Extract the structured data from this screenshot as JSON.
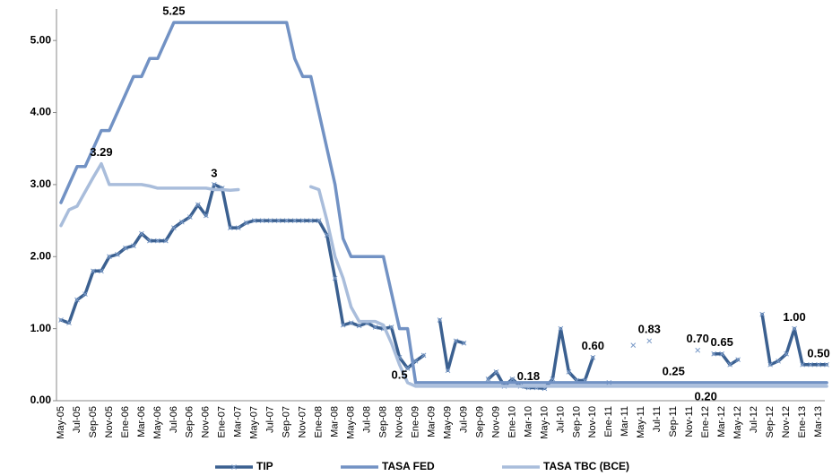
{
  "chart_data": {
    "type": "line",
    "categories": [
      "May-05",
      null,
      "Jul-05",
      null,
      "Sep-05",
      null,
      "Nov-05",
      null,
      "Ene-06",
      null,
      "Mar-06",
      null,
      "May-06",
      null,
      "Jul-06",
      null,
      "Sep-06",
      null,
      "Nov-06",
      null,
      "Ene-07",
      null,
      "Mar-07",
      null,
      "May-07",
      null,
      "Jul-07",
      null,
      "Sep-07",
      null,
      "Nov-07",
      null,
      "Ene-08",
      null,
      "Mar-08",
      null,
      "May-08",
      null,
      "Jul-08",
      null,
      "Sep-08",
      null,
      "Nov-08",
      null,
      "Ene-09",
      null,
      "Mar-09",
      null,
      "May-09",
      null,
      "Jul-09",
      null,
      "Sep-09",
      null,
      "Nov-09",
      null,
      "Ene-10",
      null,
      "Mar-10",
      null,
      "May-10",
      null,
      "Jul-10",
      null,
      "Sep-10",
      null,
      "Nov-10",
      null,
      "Ene-11",
      null,
      "Mar-11",
      null,
      "May-11",
      null,
      "Jul-11",
      null,
      "Sep-11",
      null,
      "Nov-11",
      null,
      "Ene-12",
      null,
      "Mar-12",
      null,
      "May-12",
      null,
      "Jul-12",
      null,
      "Sep-12",
      null,
      "Nov-12",
      null,
      "Ene-13",
      null,
      "Mar-13",
      null
    ],
    "series": [
      {
        "name": "TIP",
        "color": "#3b6090",
        "marker": true,
        "values": [
          1.12,
          1.08,
          1.4,
          1.48,
          1.8,
          1.8,
          2.0,
          2.03,
          2.12,
          2.15,
          2.32,
          2.22,
          2.22,
          2.22,
          2.4,
          2.48,
          2.55,
          2.72,
          2.57,
          3.0,
          2.95,
          2.4,
          2.4,
          2.47,
          2.5,
          2.5,
          2.5,
          2.5,
          2.5,
          2.5,
          2.5,
          2.5,
          2.5,
          2.3,
          1.7,
          1.05,
          1.08,
          1.04,
          1.08,
          1.02,
          1.0,
          1.02,
          0.6,
          0.45,
          0.55,
          0.63,
          null,
          1.12,
          0.42,
          0.83,
          0.8,
          null,
          null,
          0.3,
          0.4,
          0.2,
          0.3,
          0.2,
          0.18,
          0.18,
          0.17,
          0.3,
          1.0,
          0.4,
          0.28,
          0.28,
          0.6,
          null,
          0.25,
          null,
          null,
          0.77,
          null,
          0.83,
          null,
          null,
          null,
          null,
          null,
          0.7,
          null,
          0.65,
          0.65,
          0.5,
          0.57,
          null,
          null,
          1.2,
          0.5,
          0.55,
          0.65,
          1.0,
          0.5,
          0.5,
          0.5,
          0.5
        ],
        "value_labels": [
          null,
          null,
          null,
          null,
          null,
          null,
          null,
          null,
          null,
          null,
          null,
          null,
          null,
          null,
          null,
          null,
          null,
          null,
          null,
          "3",
          null,
          null,
          null,
          null,
          null,
          null,
          null,
          null,
          null,
          null,
          null,
          null,
          null,
          null,
          null,
          null,
          null,
          null,
          null,
          null,
          null,
          null,
          null,
          null,
          null,
          null,
          null,
          null,
          null,
          null,
          null,
          null,
          null,
          null,
          null,
          null,
          null,
          null,
          "0.18",
          null,
          null,
          null,
          null,
          null,
          null,
          null,
          "0.60",
          null,
          null,
          null,
          null,
          null,
          null,
          "0.83",
          null,
          null,
          null,
          null,
          null,
          "0.70",
          null,
          null,
          "0.65",
          null,
          null,
          null,
          null,
          null,
          null,
          null,
          null,
          "1.00",
          null,
          null,
          "0.50",
          null
        ]
      },
      {
        "name": "TASA FED",
        "color": "#7292c4",
        "marker": false,
        "values": [
          2.75,
          3.0,
          3.25,
          3.25,
          3.5,
          3.75,
          3.75,
          4.0,
          4.25,
          4.5,
          4.5,
          4.75,
          4.75,
          5.0,
          5.25,
          5.25,
          5.25,
          5.25,
          5.25,
          5.25,
          5.25,
          5.25,
          5.25,
          5.25,
          5.25,
          5.25,
          5.25,
          5.25,
          5.25,
          4.75,
          4.5,
          4.5,
          4.0,
          3.5,
          3.0,
          2.25,
          2.0,
          2.0,
          2.0,
          2.0,
          2.0,
          1.5,
          1.0,
          1.0,
          0.25,
          0.25,
          0.25,
          0.25,
          0.25,
          0.25,
          0.25,
          0.25,
          0.25,
          0.25,
          0.25,
          0.25,
          0.25,
          0.25,
          0.25,
          0.25,
          0.25,
          0.25,
          0.25,
          0.25,
          0.25,
          0.25,
          0.25,
          0.25,
          0.25,
          0.25,
          0.25,
          0.25,
          0.25,
          0.25,
          0.25,
          0.25,
          0.25,
          0.25,
          0.25,
          0.25,
          0.25,
          0.25,
          0.25,
          0.25,
          0.25,
          0.25,
          0.25,
          0.25,
          0.25,
          0.25,
          0.25,
          0.25,
          0.25,
          0.25,
          0.25,
          0.25
        ],
        "value_labels": [
          null,
          null,
          null,
          null,
          null,
          null,
          null,
          null,
          null,
          null,
          null,
          null,
          null,
          null,
          "5.25",
          null,
          null,
          null,
          null,
          null,
          null,
          null,
          null,
          null,
          null,
          null,
          null,
          null,
          null,
          null,
          null,
          null,
          null,
          null,
          null,
          null,
          null,
          null,
          null,
          null,
          null,
          null,
          null,
          null,
          null,
          null,
          null,
          null,
          null,
          null,
          null,
          null,
          null,
          null,
          null,
          null,
          null,
          null,
          null,
          null,
          null,
          null,
          null,
          null,
          null,
          null,
          null,
          null,
          null,
          null,
          null,
          null,
          null,
          null,
          null,
          null,
          "0.25",
          null,
          null,
          null,
          null,
          null,
          null,
          null,
          null,
          null,
          null,
          null,
          null,
          null,
          null,
          null,
          null,
          null,
          null,
          null
        ]
      },
      {
        "name": "TASA TBC (BCE)",
        "color": "#a9bddb",
        "marker": false,
        "values": [
          2.43,
          2.65,
          2.7,
          2.9,
          3.1,
          3.29,
          3.0,
          3.0,
          3.0,
          3.0,
          3.0,
          2.98,
          2.95,
          2.95,
          2.95,
          2.95,
          2.95,
          2.95,
          2.95,
          2.93,
          2.93,
          2.92,
          2.93,
          null,
          null,
          null,
          null,
          null,
          null,
          null,
          null,
          2.97,
          2.93,
          2.5,
          2.0,
          1.7,
          1.3,
          1.1,
          1.1,
          1.1,
          1.05,
          0.8,
          0.5,
          0.25,
          0.2,
          0.2,
          0.2,
          0.2,
          0.2,
          0.2,
          0.2,
          0.2,
          0.2,
          0.2,
          0.2,
          0.2,
          0.2,
          0.2,
          0.2,
          0.2,
          0.2,
          0.2,
          0.2,
          0.2,
          0.2,
          0.2,
          0.2,
          0.2,
          0.2,
          0.2,
          0.2,
          0.2,
          0.2,
          0.2,
          0.2,
          0.2,
          0.2,
          0.2,
          0.2,
          0.2,
          0.2,
          0.2,
          0.2,
          0.2,
          0.2,
          0.2,
          0.2,
          0.2,
          0.2,
          0.2,
          0.2,
          0.2,
          0.2,
          0.2,
          0.2,
          0.2
        ],
        "value_labels": [
          null,
          null,
          null,
          null,
          null,
          "3.29",
          null,
          null,
          null,
          null,
          null,
          null,
          null,
          null,
          null,
          null,
          null,
          null,
          null,
          null,
          null,
          null,
          null,
          null,
          null,
          null,
          null,
          null,
          null,
          null,
          null,
          null,
          null,
          null,
          null,
          null,
          null,
          null,
          null,
          null,
          null,
          null,
          "0.5",
          null,
          null,
          null,
          null,
          null,
          null,
          null,
          null,
          null,
          null,
          null,
          null,
          null,
          null,
          null,
          null,
          null,
          null,
          null,
          null,
          null,
          null,
          null,
          null,
          null,
          null,
          null,
          null,
          null,
          null,
          null,
          null,
          null,
          null,
          null,
          null,
          null,
          "0.20",
          null,
          null,
          null,
          null,
          null,
          null,
          null,
          null,
          null,
          null,
          null,
          null,
          null,
          null,
          null
        ]
      }
    ],
    "ylim": [
      0,
      5.5
    ],
    "yticks": [
      {
        "value": 0,
        "label": "0.00"
      },
      {
        "value": 1,
        "label": "1.00"
      },
      {
        "value": 2,
        "label": "2.00"
      },
      {
        "value": 3,
        "label": "3.00"
      },
      {
        "value": 4,
        "label": "4.00"
      },
      {
        "value": 5,
        "label": "5.00"
      }
    ],
    "grid": false,
    "legend": "bottom"
  }
}
